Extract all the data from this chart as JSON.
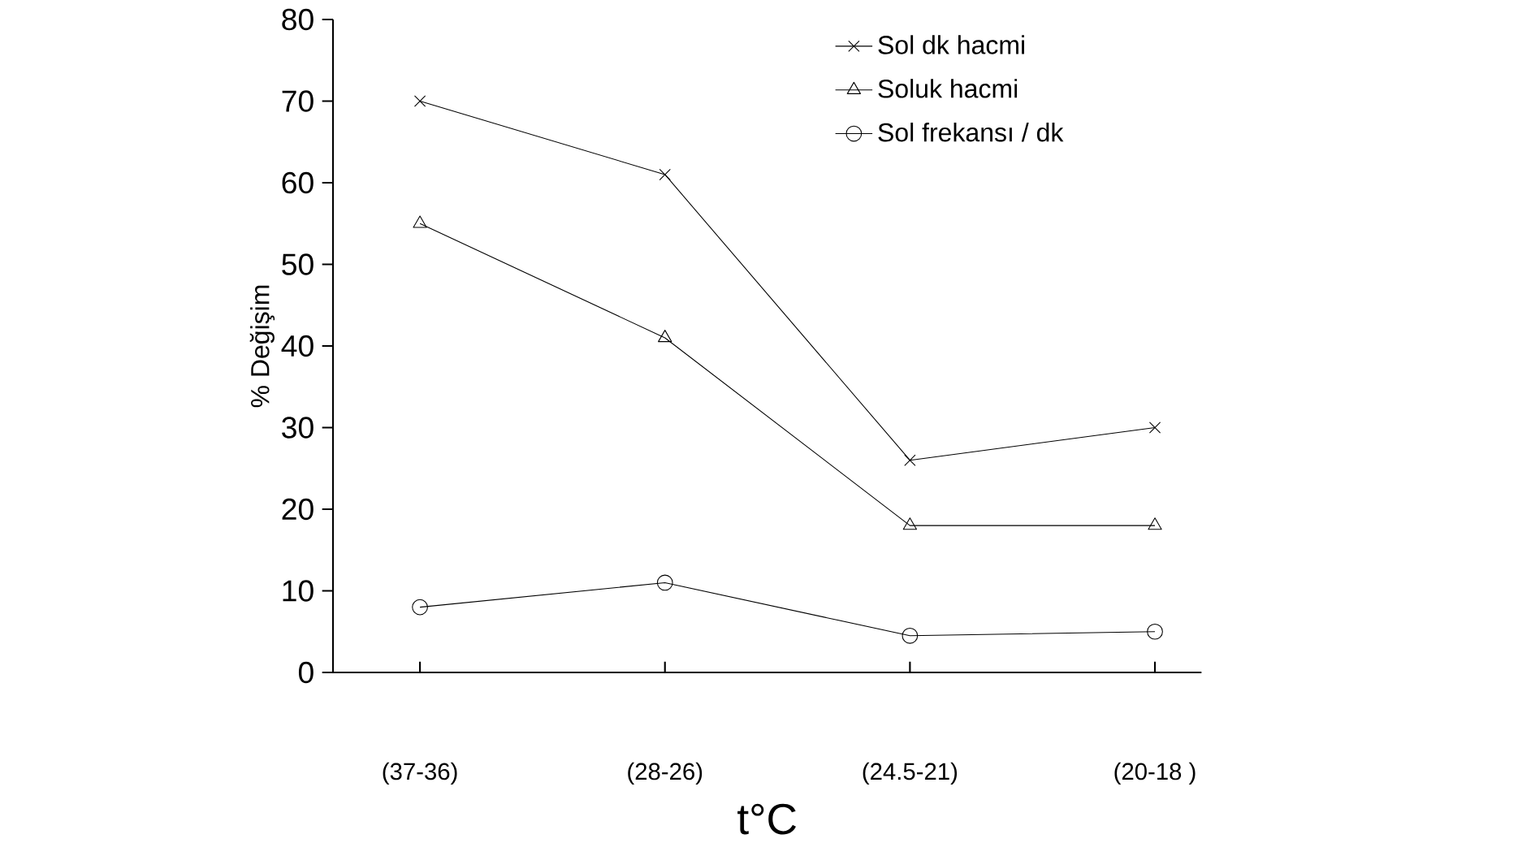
{
  "chart_data": {
    "type": "line",
    "xlabel": "t°C",
    "ylabel": "% Değişim",
    "categories": [
      "(37-36)",
      "(28-26)",
      "(24.5-21)",
      "(20-18 )"
    ],
    "ylim": [
      0,
      80
    ],
    "yticks": [
      0,
      10,
      20,
      30,
      40,
      50,
      60,
      70,
      80
    ],
    "grid": false,
    "legend": "top right",
    "line_style": "solid",
    "series": [
      {
        "name": "Sol dk hacmi",
        "color": "#000000",
        "marker": "cross",
        "values": [
          70,
          61,
          26,
          30
        ]
      },
      {
        "name": "Soluk hacmi",
        "color": "#000000",
        "marker": "triangle",
        "values": [
          55,
          41,
          18,
          18
        ]
      },
      {
        "name": "Sol frekansı / dk",
        "color": "#000000",
        "marker": "circle",
        "values": [
          8,
          11,
          4.5,
          5
        ]
      }
    ]
  }
}
